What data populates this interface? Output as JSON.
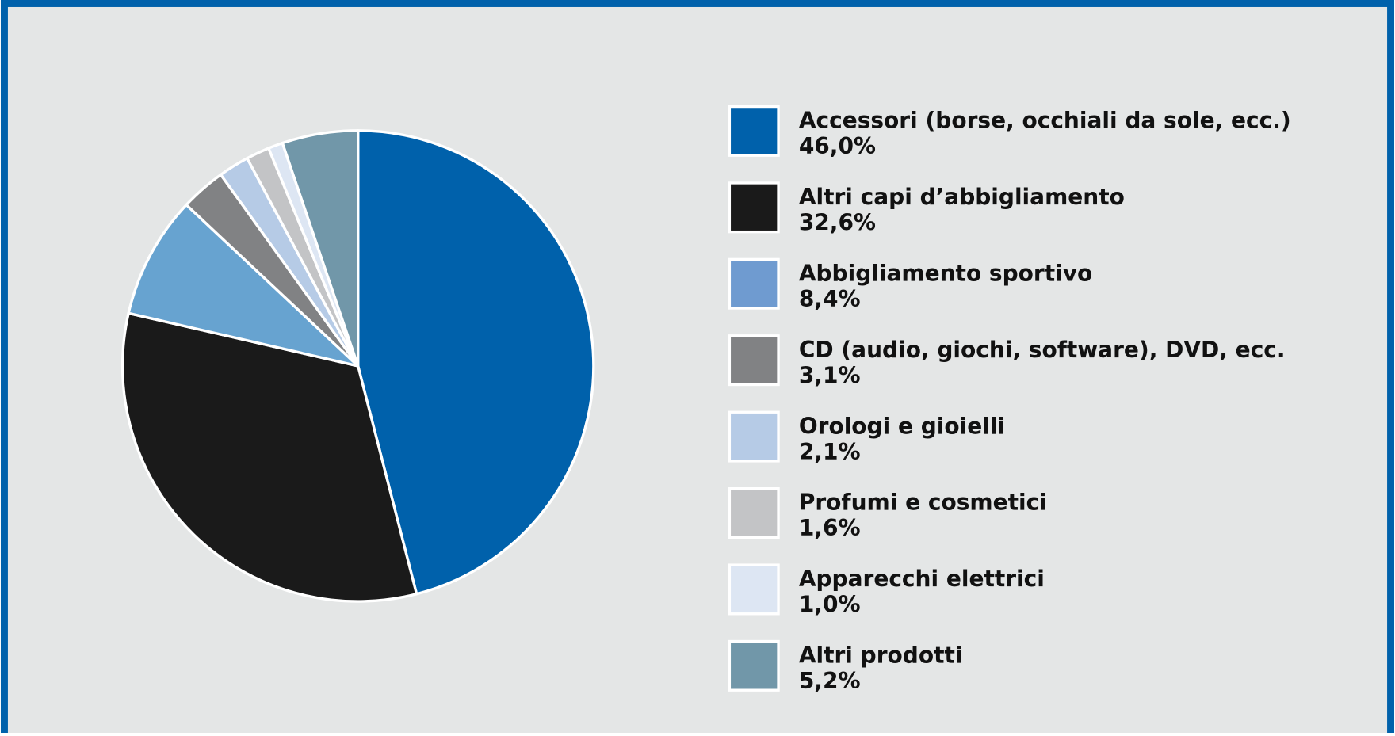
{
  "chart_data": {
    "type": "pie",
    "categories": [
      "Accessori (borse, occhiali da sole, ecc.)",
      "Altri capi d’abbigliamento",
      "Abbigliamento sportivo",
      "CD (audio, giochi, software), DVD, ecc.",
      "Orologi e gioielli",
      "Profumi e cosmetici",
      "Apparecchi elettrici",
      "Altri prodotti"
    ],
    "values": [
      46.0,
      32.6,
      8.4,
      3.1,
      2.1,
      1.6,
      1.0,
      5.2
    ],
    "value_labels": [
      "46,0%",
      "32,6%",
      "8,4%",
      "3,1%",
      "2,1%",
      "1,6%",
      "1,0%",
      "5,2%"
    ],
    "colors": [
      "#0061ab",
      "#1a1a1a",
      "#67a3d0",
      "#818284",
      "#b6cbe6",
      "#c3c4c6",
      "#dde6f3",
      "#7197a9"
    ],
    "legend_colors": [
      "#0061ab",
      "#1a1a1a",
      "#6f9bd0",
      "#818284",
      "#b6cbe6",
      "#c3c4c6",
      "#dde6f3",
      "#7197a9"
    ]
  }
}
